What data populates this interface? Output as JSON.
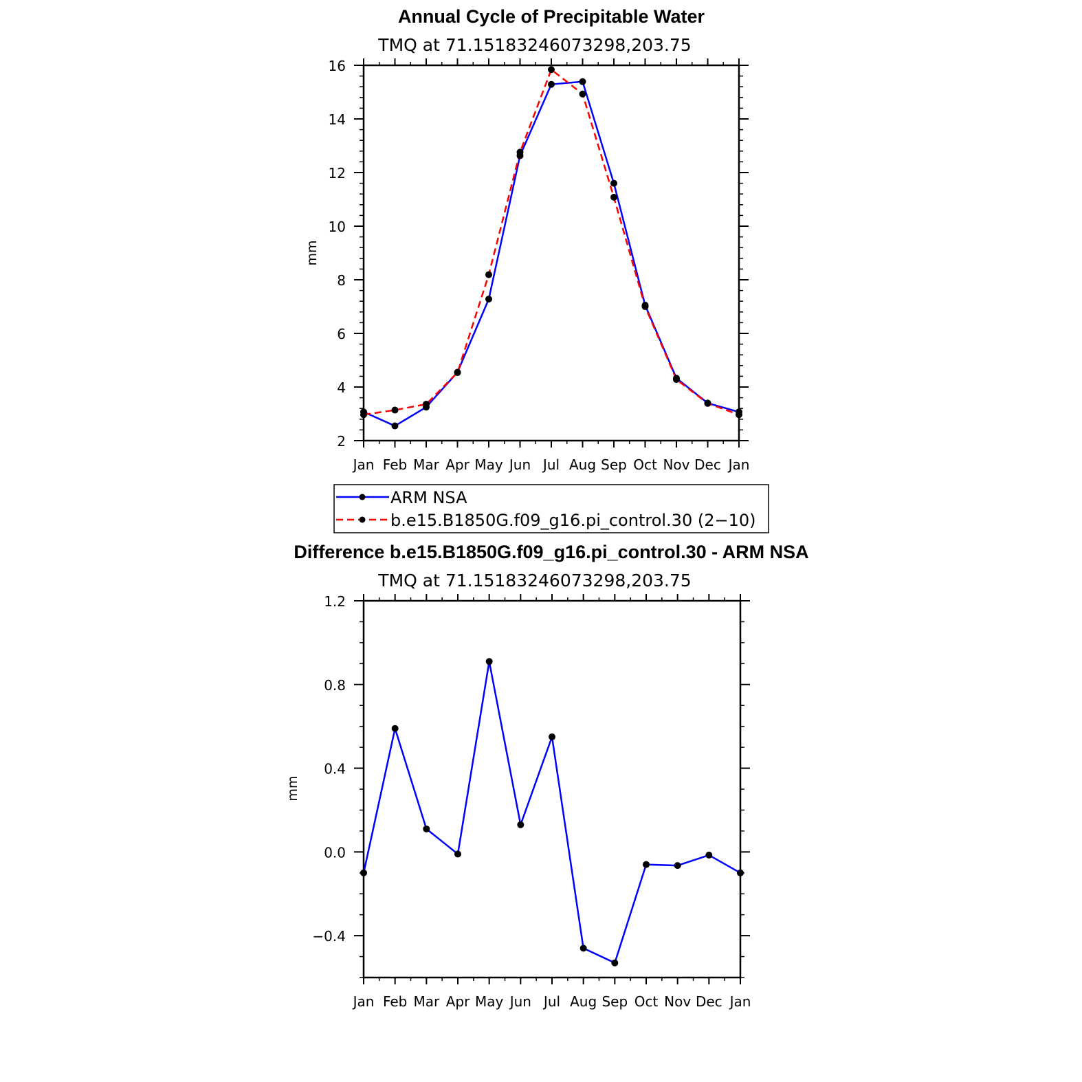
{
  "colors": {
    "obs": "#0000ff",
    "model": "#ff0000",
    "marker": "#000000"
  },
  "chart_data": [
    {
      "type": "line",
      "title": "Annual Cycle of Precipitable Water",
      "subtitle": "TMQ at 71.15183246073298,203.75",
      "ylabel": "mm",
      "categories": [
        "Jan",
        "Feb",
        "Mar",
        "Apr",
        "May",
        "Jun",
        "Jul",
        "Aug",
        "Sep",
        "Oct",
        "Nov",
        "Dec",
        "Jan"
      ],
      "ylim": [
        2,
        16
      ],
      "yticks": [
        2,
        4,
        6,
        8,
        10,
        12,
        14,
        16
      ],
      "ytick_labels": [
        "2",
        "4",
        "6",
        "8",
        "10",
        "12",
        "14",
        "16"
      ],
      "series": [
        {
          "name": "ARM NSA",
          "style": "solid",
          "color": "#0000ff",
          "values": [
            3.07,
            2.55,
            3.25,
            4.55,
            7.28,
            12.63,
            15.29,
            15.39,
            11.6,
            7.05,
            4.33,
            3.4,
            3.07
          ]
        },
        {
          "name": "b.e15.B1850G.f09_g16.pi_control.30 (2−10)",
          "style": "dashed",
          "color": "#ff0000",
          "values": [
            2.97,
            3.14,
            3.36,
            4.54,
            8.19,
            12.76,
            15.84,
            14.93,
            11.08,
            7.0,
            4.28,
            3.39,
            2.97
          ]
        }
      ],
      "legend": "below"
    },
    {
      "type": "line",
      "title": "Difference b.e15.B1850G.f09_g16.pi_control.30 - ARM NSA",
      "subtitle": "TMQ at 71.15183246073298,203.75",
      "ylabel": "mm",
      "categories": [
        "Jan",
        "Feb",
        "Mar",
        "Apr",
        "May",
        "Jun",
        "Jul",
        "Aug",
        "Sep",
        "Oct",
        "Nov",
        "Dec",
        "Jan"
      ],
      "ylim": [
        -0.6,
        1.2
      ],
      "yticks": [
        -0.4,
        0.0,
        0.4,
        0.8,
        1.2
      ],
      "ytick_labels": [
        "−0.4",
        "0.0",
        "0.4",
        "0.8",
        "1.2"
      ],
      "series": [
        {
          "style": "solid",
          "color": "#0000ff",
          "values": [
            -0.1,
            0.59,
            0.11,
            -0.01,
            0.91,
            0.13,
            0.55,
            -0.46,
            -0.53,
            -0.06,
            -0.065,
            -0.015,
            -0.1
          ]
        }
      ]
    }
  ]
}
